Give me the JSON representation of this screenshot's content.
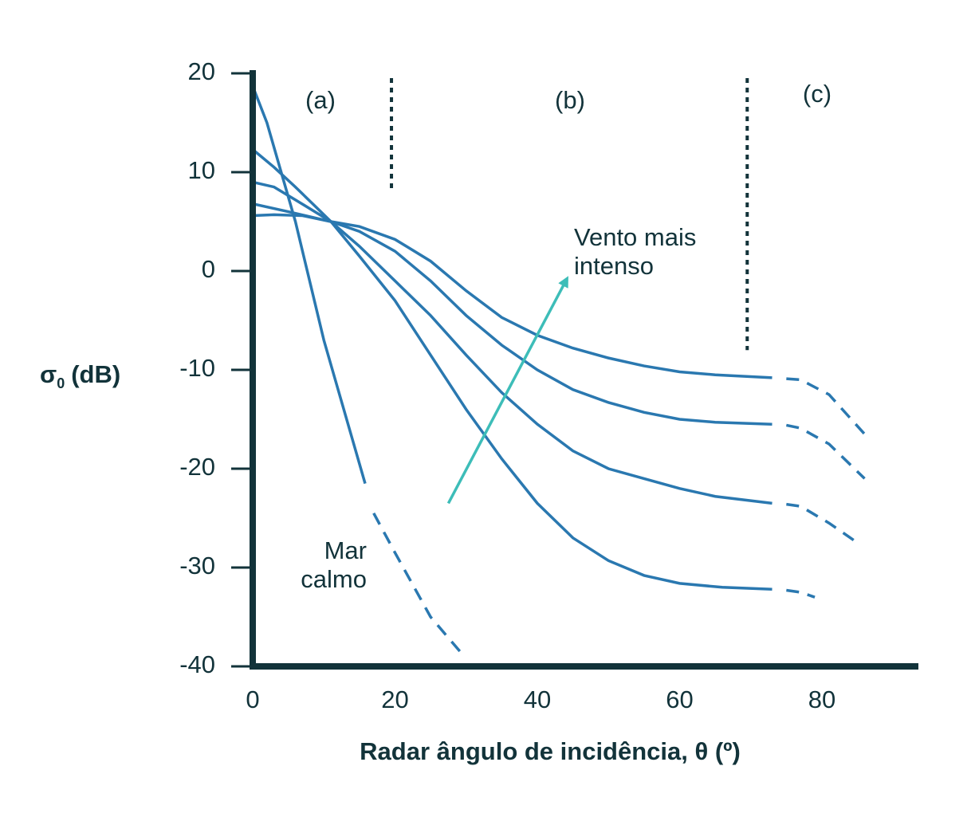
{
  "chart_data": {
    "type": "line",
    "xlabel": "Radar ângulo de incidência, θ (º)",
    "ylabel": {
      "symbol": "σ",
      "subscript": "0",
      "unit": "(dB)"
    },
    "xlim": [
      0,
      93
    ],
    "ylim": [
      -40,
      20
    ],
    "xticks": [
      0,
      20,
      40,
      60,
      80
    ],
    "yticks": [
      -40,
      -30,
      -20,
      -10,
      0,
      10,
      20
    ],
    "axis_color": "#12333a",
    "series": [
      {
        "color": "#2a78b0",
        "dashed": false,
        "x": [
          0,
          2,
          4,
          6,
          8,
          10,
          12,
          14,
          15.8
        ],
        "values": [
          18.7,
          15,
          10,
          5,
          -1,
          -7,
          -12,
          -17,
          -21.5
        ]
      },
      {
        "color": "#2a78b0",
        "dashed": true,
        "x": [
          17,
          20,
          25,
          29.5
        ],
        "values": [
          -24.5,
          -28.5,
          -35,
          -38.8
        ]
      },
      {
        "color": "#2a78b0",
        "dashed": false,
        "x": [
          0,
          3,
          6,
          11,
          15,
          20,
          25,
          30,
          35,
          40,
          45,
          50,
          55,
          60,
          66,
          73
        ],
        "values": [
          12.3,
          10.5,
          8.5,
          5,
          1.5,
          -3,
          -8.5,
          -14,
          -19,
          -23.5,
          -27,
          -29.3,
          -30.8,
          -31.6,
          -32,
          -32.2
        ]
      },
      {
        "color": "#2a78b0",
        "dashed": true,
        "x": [
          75,
          77,
          79
        ],
        "values": [
          -32.3,
          -32.5,
          -33
        ]
      },
      {
        "color": "#2a78b0",
        "dashed": false,
        "x": [
          0,
          3,
          6,
          11,
          15,
          20,
          25,
          30,
          35,
          40,
          45,
          50,
          55,
          60,
          65,
          73
        ],
        "values": [
          9,
          8.5,
          7.2,
          5,
          2.5,
          -1,
          -4.5,
          -8.5,
          -12.3,
          -15.5,
          -18.2,
          -20,
          -21,
          -22,
          -22.8,
          -23.5
        ]
      },
      {
        "color": "#2a78b0",
        "dashed": true,
        "x": [
          75,
          77,
          81,
          85
        ],
        "values": [
          -23.6,
          -23.8,
          -25.5,
          -27.5
        ]
      },
      {
        "color": "#2a78b0",
        "dashed": false,
        "x": [
          0,
          5,
          11,
          15,
          20,
          25,
          30,
          35,
          40,
          45,
          50,
          55,
          60,
          65,
          73
        ],
        "values": [
          6.8,
          6,
          5,
          4,
          2,
          -1,
          -4.5,
          -7.5,
          -10,
          -12,
          -13.3,
          -14.3,
          -15,
          -15.3,
          -15.5
        ]
      },
      {
        "color": "#2a78b0",
        "dashed": true,
        "x": [
          75,
          77,
          81,
          86
        ],
        "values": [
          -15.6,
          -15.9,
          -17.5,
          -21
        ]
      },
      {
        "color": "#2a78b0",
        "dashed": false,
        "x": [
          0,
          3,
          7,
          11,
          15,
          20,
          25,
          30,
          35,
          40,
          45,
          50,
          55,
          60,
          65,
          73
        ],
        "values": [
          5.6,
          5.7,
          5.6,
          5,
          4.5,
          3.2,
          1,
          -2,
          -4.7,
          -6.5,
          -7.8,
          -8.8,
          -9.6,
          -10.2,
          -10.5,
          -10.8
        ]
      },
      {
        "color": "#2a78b0",
        "dashed": true,
        "x": [
          75,
          77,
          81,
          86
        ],
        "values": [
          -10.9,
          -11,
          -12.5,
          -16.5
        ]
      }
    ],
    "region_lines": [
      {
        "x": 19.5,
        "y": [
          20,
          8
        ]
      },
      {
        "x": 69.5,
        "y": [
          20,
          -8
        ]
      }
    ],
    "region_color": "#12333a",
    "arrow": {
      "from": [
        27.5,
        -23.5
      ],
      "to": [
        44,
        -1
      ],
      "color": "#3dbdb8"
    },
    "annotations": [
      {
        "lines": [
          "(a)"
        ]
      },
      {
        "lines": [
          "(b)"
        ]
      },
      {
        "lines": [
          "(c)"
        ]
      },
      {
        "lines": [
          "Vento mais",
          "intenso"
        ]
      },
      {
        "lines": [
          "Mar",
          "calmo"
        ]
      }
    ]
  }
}
